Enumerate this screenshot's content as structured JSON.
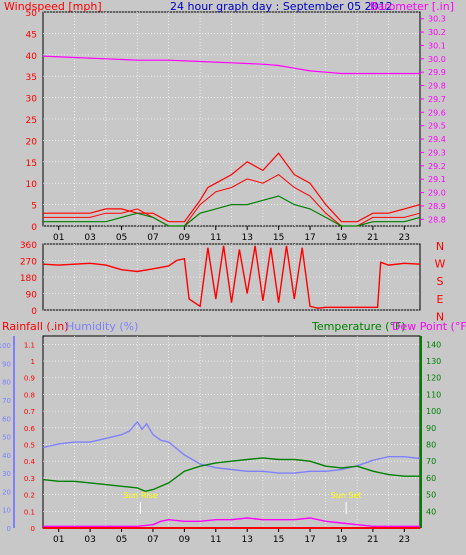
{
  "header": {
    "wind_label": "Windspeed [mph]",
    "title": "24 hour graph day : September 05 2012",
    "baro_label": "Barometer [.in]"
  },
  "x_ticks": [
    "01",
    "03",
    "05",
    "07",
    "09",
    "11",
    "13",
    "15",
    "17",
    "19",
    "21",
    "23"
  ],
  "colors": {
    "wind": "#ff0000",
    "gust": "#ff0000",
    "avg": "#008000",
    "baro": "#ff00ff",
    "direction": "#ff0000",
    "rain": "#ff0000",
    "humidity": "#8080ff",
    "temperature": "#008000",
    "dewpoint": "#ff00ff",
    "sun": "#ffff00",
    "bg": "#c8c8c8"
  },
  "chart_data": [
    {
      "type": "line",
      "name": "wind-barometer",
      "x_range": [
        0,
        24
      ],
      "left_axis": {
        "label": "Windspeed [mph]",
        "ticks": [
          0,
          5,
          10,
          15,
          20,
          25,
          30,
          35,
          40,
          45,
          50
        ],
        "ylim": [
          0,
          50
        ]
      },
      "right_axis": {
        "label": "Barometer [.in]",
        "ticks": [
          28.8,
          28.9,
          29,
          29.1,
          29.2,
          29.3,
          29.4,
          29.5,
          29.6,
          29.7,
          29.8,
          29.9,
          30,
          30.1,
          30.2,
          30.3
        ],
        "ylim": [
          28.75,
          30.35
        ]
      },
      "series": [
        {
          "key": "barometer",
          "axis": "right",
          "points": [
            [
              0,
              30.02
            ],
            [
              2,
              30.01
            ],
            [
              4,
              30.0
            ],
            [
              6,
              29.99
            ],
            [
              8,
              29.99
            ],
            [
              10,
              29.98
            ],
            [
              12,
              29.97
            ],
            [
              14,
              29.96
            ],
            [
              15,
              29.95
            ],
            [
              16,
              29.93
            ],
            [
              17,
              29.91
            ],
            [
              18,
              29.9
            ],
            [
              19,
              29.89
            ],
            [
              20,
              29.89
            ],
            [
              22,
              29.89
            ],
            [
              23,
              29.89
            ],
            [
              24,
              29.89
            ]
          ]
        },
        {
          "key": "gust_envelope",
          "axis": "left",
          "points": [
            [
              0,
              3
            ],
            [
              1,
              3
            ],
            [
              2,
              3
            ],
            [
              3,
              3
            ],
            [
              4,
              4
            ],
            [
              5,
              4
            ],
            [
              6,
              3
            ],
            [
              7,
              3
            ],
            [
              8,
              1
            ],
            [
              9,
              1
            ],
            [
              10,
              6
            ],
            [
              10.5,
              9
            ],
            [
              11,
              10
            ],
            [
              12,
              12
            ],
            [
              13,
              15
            ],
            [
              14,
              13
            ],
            [
              15,
              17
            ],
            [
              16,
              12
            ],
            [
              17,
              10
            ],
            [
              18,
              5
            ],
            [
              19,
              1
            ],
            [
              20,
              1
            ],
            [
              21,
              3
            ],
            [
              22,
              3
            ],
            [
              23,
              4
            ],
            [
              24,
              5
            ]
          ]
        },
        {
          "key": "wind_max",
          "axis": "left",
          "points": [
            [
              0,
              2
            ],
            [
              1,
              2
            ],
            [
              2,
              2
            ],
            [
              3,
              2
            ],
            [
              4,
              3
            ],
            [
              5,
              3
            ],
            [
              6,
              4
            ],
            [
              7,
              2
            ],
            [
              8,
              0
            ],
            [
              9,
              0
            ],
            [
              10,
              5
            ],
            [
              11,
              8
            ],
            [
              12,
              9
            ],
            [
              13,
              11
            ],
            [
              14,
              10
            ],
            [
              15,
              12
            ],
            [
              16,
              9
            ],
            [
              17,
              7
            ],
            [
              18,
              3
            ],
            [
              19,
              0
            ],
            [
              20,
              0
            ],
            [
              21,
              2
            ],
            [
              22,
              2
            ],
            [
              23,
              2
            ],
            [
              24,
              3
            ]
          ]
        },
        {
          "key": "wind_avg",
          "axis": "left",
          "points": [
            [
              0,
              1
            ],
            [
              1,
              1
            ],
            [
              2,
              1
            ],
            [
              3,
              1
            ],
            [
              4,
              1
            ],
            [
              5,
              2
            ],
            [
              6,
              3
            ],
            [
              7,
              2
            ],
            [
              8,
              0
            ],
            [
              9,
              0
            ],
            [
              10,
              3
            ],
            [
              11,
              4
            ],
            [
              12,
              5
            ],
            [
              13,
              5
            ],
            [
              14,
              6
            ],
            [
              15,
              7
            ],
            [
              16,
              5
            ],
            [
              17,
              4
            ],
            [
              18,
              2
            ],
            [
              19,
              0
            ],
            [
              20,
              0
            ],
            [
              21,
              1
            ],
            [
              22,
              1
            ],
            [
              23,
              1
            ],
            [
              24,
              2
            ]
          ]
        }
      ]
    },
    {
      "type": "scatter",
      "name": "wind-direction",
      "x_range": [
        0,
        24
      ],
      "left_axis": {
        "ticks": [
          0,
          90,
          180,
          270,
          360
        ],
        "ylim": [
          0,
          360
        ]
      },
      "right_axis": {
        "ticks": [
          "N",
          "W",
          "S",
          "E",
          "N"
        ]
      },
      "series": [
        {
          "key": "direction",
          "points": [
            [
              0,
              250
            ],
            [
              1,
              245
            ],
            [
              2,
              250
            ],
            [
              3,
              255
            ],
            [
              4,
              245
            ],
            [
              5,
              220
            ],
            [
              6,
              210
            ],
            [
              7,
              225
            ],
            [
              8,
              240
            ],
            [
              8.5,
              270
            ],
            [
              9,
              280
            ],
            [
              9.3,
              60
            ],
            [
              10,
              20
            ],
            [
              10.5,
              340
            ],
            [
              11,
              60
            ],
            [
              11.5,
              350
            ],
            [
              12,
              40
            ],
            [
              12.5,
              330
            ],
            [
              13,
              90
            ],
            [
              13.5,
              350
            ],
            [
              14,
              50
            ],
            [
              14.5,
              340
            ],
            [
              15,
              40
            ],
            [
              15.5,
              350
            ],
            [
              16,
              60
            ],
            [
              16.5,
              340
            ],
            [
              17,
              20
            ],
            [
              17.5,
              10
            ],
            [
              18,
              15
            ],
            [
              19,
              15
            ],
            [
              20,
              15
            ],
            [
              21.3,
              15
            ],
            [
              21.5,
              260
            ],
            [
              22,
              245
            ],
            [
              23,
              255
            ],
            [
              24,
              250
            ]
          ]
        }
      ]
    },
    {
      "type": "line",
      "name": "rain-humidity-temperature-dewpoint",
      "x_range": [
        0,
        24
      ],
      "rain_axis": {
        "label": "Rainfall (.in)",
        "ticks": [
          0,
          0.1,
          0.2,
          0.3,
          0.4,
          0.5,
          0.6,
          0.7,
          0.8,
          0.9,
          1,
          1.1
        ],
        "ylim": [
          0,
          1.15
        ]
      },
      "humidity_axis": {
        "label": "Humidity (%)",
        "ticks": [
          0,
          10,
          20,
          30,
          40,
          50,
          60,
          70,
          80,
          90,
          100
        ],
        "ylim": [
          0,
          105
        ]
      },
      "temp_axis": {
        "label": "Temperature (°F)",
        "ticks": [
          40,
          50,
          60,
          70,
          80,
          90,
          100,
          110,
          120,
          130,
          140
        ],
        "ylim": [
          30,
          145
        ]
      },
      "dew_label": "Dew Point (°F)",
      "annotations": [
        {
          "text": "Sun Rise",
          "x": 6.2
        },
        {
          "text": "Sun Set",
          "x": 19.3
        }
      ],
      "series": [
        {
          "key": "humidity",
          "axis": "humidity",
          "points": [
            [
              0,
              44
            ],
            [
              1,
              46
            ],
            [
              2,
              47
            ],
            [
              3,
              47
            ],
            [
              4,
              49
            ],
            [
              5,
              51
            ],
            [
              5.5,
              53
            ],
            [
              6,
              58
            ],
            [
              6.3,
              54
            ],
            [
              6.6,
              57
            ],
            [
              7,
              51
            ],
            [
              7.5,
              48
            ],
            [
              8,
              47
            ],
            [
              9,
              40
            ],
            [
              10,
              35
            ],
            [
              11,
              33
            ],
            [
              12,
              32
            ],
            [
              13,
              31
            ],
            [
              14,
              31
            ],
            [
              15,
              30
            ],
            [
              16,
              30
            ],
            [
              17,
              31
            ],
            [
              18,
              31
            ],
            [
              19,
              32
            ],
            [
              20,
              34
            ],
            [
              21,
              37
            ],
            [
              22,
              39
            ],
            [
              23,
              39
            ],
            [
              24,
              38
            ]
          ]
        },
        {
          "key": "temperature",
          "axis": "temp",
          "points": [
            [
              0,
              59
            ],
            [
              1,
              58
            ],
            [
              2,
              58
            ],
            [
              3,
              57
            ],
            [
              4,
              56
            ],
            [
              5,
              55
            ],
            [
              6,
              54
            ],
            [
              6.5,
              52
            ],
            [
              7,
              53
            ],
            [
              8,
              57
            ],
            [
              9,
              64
            ],
            [
              10,
              67
            ],
            [
              11,
              69
            ],
            [
              12,
              70
            ],
            [
              13,
              71
            ],
            [
              14,
              72
            ],
            [
              15,
              71
            ],
            [
              16,
              71
            ],
            [
              17,
              70
            ],
            [
              18,
              67
            ],
            [
              19,
              66
            ],
            [
              20,
              67
            ],
            [
              21,
              64
            ],
            [
              22,
              62
            ],
            [
              23,
              61
            ],
            [
              24,
              61
            ]
          ]
        },
        {
          "key": "dewpoint",
          "axis": "temp",
          "points": [
            [
              0,
              31
            ],
            [
              4,
              31
            ],
            [
              6,
              31
            ],
            [
              7,
              32
            ],
            [
              7.5,
              34
            ],
            [
              8,
              35
            ],
            [
              9,
              34
            ],
            [
              10,
              34
            ],
            [
              11,
              35
            ],
            [
              12,
              35
            ],
            [
              13,
              36
            ],
            [
              14,
              35
            ],
            [
              15,
              35
            ],
            [
              16,
              35
            ],
            [
              17,
              36
            ],
            [
              18,
              34
            ],
            [
              19,
              33
            ],
            [
              20,
              32
            ],
            [
              21,
              31
            ],
            [
              22,
              31
            ],
            [
              24,
              31
            ]
          ]
        },
        {
          "key": "rainfall",
          "axis": "rain",
          "points": [
            [
              0,
              0
            ],
            [
              24,
              0
            ]
          ]
        }
      ]
    }
  ],
  "panel3": {
    "rain_label": "Rainfall (.in)",
    "humidity_label": "Humidity (%)",
    "temp_label": "Temperature (°F)",
    "dew_label": "Dew Point (°F)"
  },
  "direction_labels": [
    "N",
    "W",
    "S",
    "E",
    "N"
  ]
}
